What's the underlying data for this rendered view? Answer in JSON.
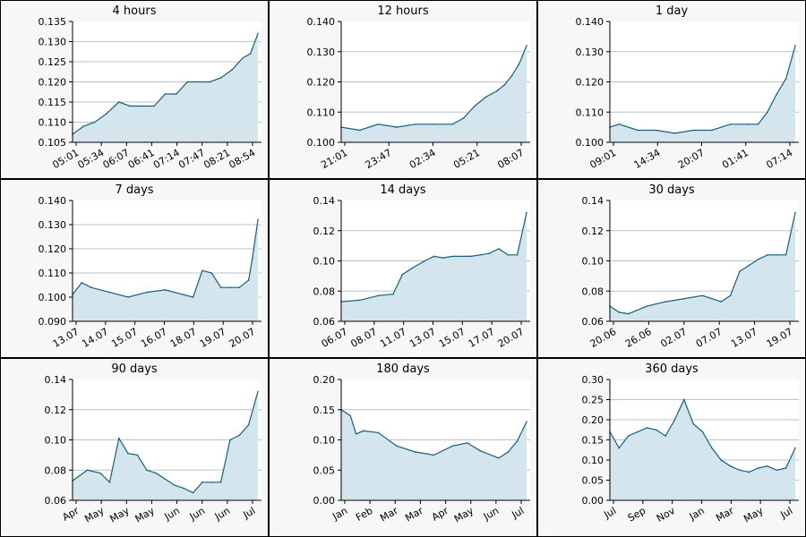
{
  "chart_data": [
    {
      "type": "area",
      "title": "4 hours",
      "xticks": [
        "05:01",
        "05:34",
        "06:07",
        "06:41",
        "07:14",
        "07:47",
        "08:21",
        "08:54"
      ],
      "ylim": [
        0.105,
        0.135
      ],
      "yticks": [
        "0.105",
        "0.110",
        "0.115",
        "0.120",
        "0.125",
        "0.130",
        "0.135"
      ],
      "x": [
        0,
        0.06,
        0.12,
        0.18,
        0.25,
        0.31,
        0.38,
        0.44,
        0.5,
        0.56,
        0.62,
        0.68,
        0.74,
        0.8,
        0.86,
        0.92,
        0.96,
        1.0
      ],
      "y": [
        0.107,
        0.109,
        0.11,
        0.112,
        0.115,
        0.114,
        0.114,
        0.114,
        0.117,
        0.117,
        0.12,
        0.12,
        0.12,
        0.121,
        0.123,
        0.126,
        0.127,
        0.132
      ]
    },
    {
      "type": "area",
      "title": "12 hours",
      "xticks": [
        "21:01",
        "23:47",
        "02:34",
        "05:21",
        "08:07"
      ],
      "ylim": [
        0.1,
        0.14
      ],
      "yticks": [
        "0.100",
        "0.110",
        "0.120",
        "0.130",
        "0.140"
      ],
      "x": [
        0,
        0.1,
        0.2,
        0.3,
        0.4,
        0.5,
        0.6,
        0.66,
        0.72,
        0.78,
        0.84,
        0.88,
        0.92,
        0.96,
        1.0
      ],
      "y": [
        0.105,
        0.104,
        0.106,
        0.105,
        0.106,
        0.106,
        0.106,
        0.108,
        0.112,
        0.115,
        0.117,
        0.119,
        0.122,
        0.126,
        0.132
      ]
    },
    {
      "type": "area",
      "title": "1 day",
      "xticks": [
        "09:01",
        "14:34",
        "20:07",
        "01:41",
        "07:14"
      ],
      "ylim": [
        0.1,
        0.14
      ],
      "yticks": [
        "0.100",
        "0.110",
        "0.120",
        "0.130",
        "0.140"
      ],
      "x": [
        0,
        0.05,
        0.15,
        0.25,
        0.35,
        0.45,
        0.55,
        0.65,
        0.75,
        0.8,
        0.85,
        0.9,
        0.95,
        1.0
      ],
      "y": [
        0.105,
        0.106,
        0.104,
        0.104,
        0.103,
        0.104,
        0.104,
        0.106,
        0.106,
        0.106,
        0.11,
        0.116,
        0.121,
        0.132
      ]
    },
    {
      "type": "area",
      "title": "7 days",
      "xticks": [
        "13.07",
        "14.07",
        "15.07",
        "16.07",
        "18.07",
        "19.07",
        "20.07"
      ],
      "ylim": [
        0.09,
        0.14
      ],
      "yticks": [
        "0.090",
        "0.100",
        "0.110",
        "0.120",
        "0.130",
        "0.140"
      ],
      "x": [
        0,
        0.05,
        0.1,
        0.2,
        0.3,
        0.4,
        0.5,
        0.55,
        0.6,
        0.65,
        0.7,
        0.75,
        0.8,
        0.85,
        0.9,
        0.95,
        0.97,
        1.0
      ],
      "y": [
        0.101,
        0.106,
        0.104,
        0.102,
        0.1,
        0.102,
        0.103,
        0.102,
        0.101,
        0.1,
        0.111,
        0.11,
        0.104,
        0.104,
        0.104,
        0.107,
        0.116,
        0.132
      ]
    },
    {
      "type": "area",
      "title": "14 days",
      "xticks": [
        "06.07",
        "08.07",
        "11.07",
        "13.07",
        "15.07",
        "17.07",
        "20.07"
      ],
      "ylim": [
        0.06,
        0.14
      ],
      "yticks": [
        "0.06",
        "0.08",
        "0.10",
        "0.12",
        "0.14"
      ],
      "x": [
        0,
        0.1,
        0.2,
        0.28,
        0.33,
        0.38,
        0.45,
        0.5,
        0.55,
        0.6,
        0.7,
        0.75,
        0.8,
        0.85,
        0.9,
        0.95,
        1.0
      ],
      "y": [
        0.073,
        0.074,
        0.077,
        0.078,
        0.091,
        0.095,
        0.1,
        0.103,
        0.102,
        0.103,
        0.103,
        0.104,
        0.105,
        0.108,
        0.104,
        0.104,
        0.132
      ]
    },
    {
      "type": "area",
      "title": "30 days",
      "xticks": [
        "20.06",
        "26.06",
        "02.07",
        "07.07",
        "13.07",
        "19.07"
      ],
      "ylim": [
        0.06,
        0.14
      ],
      "yticks": [
        "0.06",
        "0.08",
        "0.10",
        "0.12",
        "0.14"
      ],
      "x": [
        0,
        0.05,
        0.1,
        0.2,
        0.3,
        0.4,
        0.5,
        0.6,
        0.65,
        0.7,
        0.75,
        0.8,
        0.85,
        0.9,
        0.95,
        1.0
      ],
      "y": [
        0.07,
        0.066,
        0.065,
        0.07,
        0.073,
        0.075,
        0.077,
        0.073,
        0.077,
        0.093,
        0.097,
        0.101,
        0.104,
        0.104,
        0.104,
        0.132
      ]
    },
    {
      "type": "area",
      "title": "90 days",
      "xticks": [
        "Apr",
        "May",
        "May",
        "May",
        "Jun",
        "Jun",
        "Jun",
        "Jul"
      ],
      "ylim": [
        0.06,
        0.14
      ],
      "yticks": [
        "0.06",
        "0.08",
        "0.10",
        "0.12",
        "0.14"
      ],
      "x": [
        0,
        0.08,
        0.15,
        0.2,
        0.25,
        0.3,
        0.35,
        0.4,
        0.45,
        0.55,
        0.6,
        0.65,
        0.7,
        0.75,
        0.8,
        0.85,
        0.9,
        0.95,
        1.0
      ],
      "y": [
        0.073,
        0.08,
        0.078,
        0.072,
        0.101,
        0.091,
        0.09,
        0.08,
        0.078,
        0.07,
        0.068,
        0.065,
        0.072,
        0.072,
        0.072,
        0.1,
        0.103,
        0.11,
        0.132
      ]
    },
    {
      "type": "area",
      "title": "180 days",
      "xticks": [
        "Jan",
        "Feb",
        "Mar",
        "Mar",
        "Apr",
        "May",
        "Jun",
        "Jul"
      ],
      "ylim": [
        0.0,
        0.2
      ],
      "yticks": [
        "0.00",
        "0.05",
        "0.10",
        "0.15",
        "0.20"
      ],
      "x": [
        0,
        0.05,
        0.08,
        0.12,
        0.2,
        0.3,
        0.4,
        0.5,
        0.6,
        0.68,
        0.75,
        0.85,
        0.9,
        0.95,
        1.0
      ],
      "y": [
        0.15,
        0.14,
        0.11,
        0.115,
        0.112,
        0.09,
        0.08,
        0.075,
        0.09,
        0.095,
        0.082,
        0.07,
        0.08,
        0.098,
        0.13
      ]
    },
    {
      "type": "area",
      "title": "360 days",
      "xticks": [
        "Jul",
        "Sep",
        "Nov",
        "Jan",
        "Mar",
        "May",
        "Jul"
      ],
      "ylim": [
        0.0,
        0.3
      ],
      "yticks": [
        "0.00",
        "0.05",
        "0.10",
        "0.15",
        "0.20",
        "0.25",
        "0.30"
      ],
      "x": [
        0,
        0.05,
        0.1,
        0.15,
        0.2,
        0.25,
        0.3,
        0.35,
        0.4,
        0.45,
        0.5,
        0.55,
        0.6,
        0.65,
        0.7,
        0.75,
        0.8,
        0.85,
        0.9,
        0.95,
        1.0
      ],
      "y": [
        0.17,
        0.13,
        0.16,
        0.17,
        0.18,
        0.175,
        0.16,
        0.2,
        0.25,
        0.19,
        0.17,
        0.13,
        0.1,
        0.085,
        0.075,
        0.07,
        0.08,
        0.085,
        0.075,
        0.08,
        0.13
      ]
    }
  ]
}
